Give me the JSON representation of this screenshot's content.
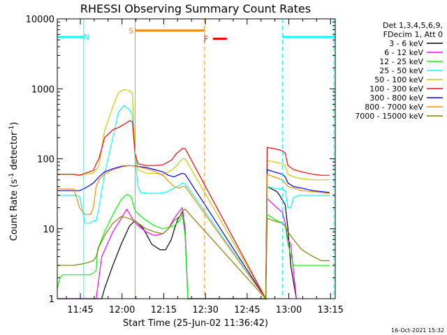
{
  "chart_data": {
    "type": "line",
    "title": "RHESSI Observing Summary Count Rates",
    "xlabel": "Start Time (25-Jun-02 11:36:42)",
    "ylabel_main": "Count Rate (s",
    "ylabel_sup1": "-1",
    "ylabel_mid": " detector",
    "ylabel_sup2": "-1",
    "ylabel_end": ")",
    "yscale": "log",
    "ylim": [
      1,
      10000
    ],
    "xlim_minutes": [
      0,
      100
    ],
    "xticks": [
      {
        "label": "11:45",
        "m": 8.3
      },
      {
        "label": "12:00",
        "m": 23.3
      },
      {
        "label": "12:15",
        "m": 38.3
      },
      {
        "label": "12:30",
        "m": 53.3
      },
      {
        "label": "12:45",
        "m": 68.3
      },
      {
        "label": "13:00",
        "m": 83.3
      },
      {
        "label": "13:15",
        "m": 98.3
      }
    ],
    "yticks": [
      {
        "label": "1",
        "v": 1
      },
      {
        "label": "10",
        "v": 10
      },
      {
        "label": "100",
        "v": 100
      },
      {
        "label": "1000",
        "v": 1000
      },
      {
        "label": "10000",
        "v": 10000
      }
    ],
    "legend_header": [
      "Det 1,3,4,5,6,9,",
      "FDecim 1, Att 0"
    ],
    "series": [
      {
        "name": "3 - 6 keV",
        "color": "#000000",
        "points": [
          [
            0,
            1
          ],
          [
            16,
            1
          ],
          [
            17,
            1.4
          ],
          [
            20,
            3
          ],
          [
            23,
            6
          ],
          [
            26,
            11
          ],
          [
            28,
            13
          ],
          [
            31,
            10
          ],
          [
            34,
            6
          ],
          [
            37,
            5
          ],
          [
            39,
            5
          ],
          [
            41,
            7
          ],
          [
            42.5,
            11
          ],
          [
            43.5,
            14
          ],
          [
            44.5,
            16
          ],
          [
            45,
            18
          ],
          [
            46,
            8
          ],
          [
            47,
            1
          ],
          [
            75,
            1
          ],
          [
            75.5,
            40
          ],
          [
            79,
            34
          ],
          [
            80,
            30
          ],
          [
            82,
            22
          ],
          [
            83,
            10
          ],
          [
            84,
            3
          ],
          [
            86,
            1
          ]
        ]
      },
      {
        "name": "6 - 12 keV",
        "color": "#ff00ff",
        "points": [
          [
            0,
            1
          ],
          [
            13,
            1
          ],
          [
            14,
            1
          ],
          [
            16,
            4
          ],
          [
            18,
            6
          ],
          [
            20,
            9
          ],
          [
            23,
            14
          ],
          [
            25,
            19
          ],
          [
            27,
            14
          ],
          [
            29,
            11
          ],
          [
            32,
            9
          ],
          [
            35,
            8
          ],
          [
            38,
            8.5
          ],
          [
            40,
            10
          ],
          [
            42,
            14
          ],
          [
            44,
            18
          ],
          [
            45,
            20
          ],
          [
            46,
            10
          ],
          [
            47,
            1
          ],
          [
            75,
            1
          ],
          [
            75.5,
            27
          ],
          [
            79,
            20
          ],
          [
            81,
            17
          ],
          [
            82,
            12
          ],
          [
            83,
            7
          ],
          [
            84,
            6
          ],
          [
            86,
            1
          ]
        ]
      },
      {
        "name": "12 - 25 keV",
        "color": "#00ff00",
        "points": [
          [
            0,
            1.4
          ],
          [
            1,
            2
          ],
          [
            2,
            2.2
          ],
          [
            6,
            2.2
          ],
          [
            10,
            2.2
          ],
          [
            12,
            2.2
          ],
          [
            14,
            2.5
          ],
          [
            14.5,
            5
          ],
          [
            17,
            9
          ],
          [
            20,
            16
          ],
          [
            23,
            26
          ],
          [
            25,
            31
          ],
          [
            26.5,
            29
          ],
          [
            28,
            18
          ],
          [
            31,
            14
          ],
          [
            35,
            11
          ],
          [
            38,
            10
          ],
          [
            40,
            10.5
          ],
          [
            42,
            11
          ],
          [
            44,
            13
          ],
          [
            45,
            16
          ],
          [
            46,
            8
          ],
          [
            47,
            1
          ],
          [
            75,
            1
          ],
          [
            75.5,
            16
          ],
          [
            79,
            13
          ],
          [
            81,
            12
          ],
          [
            82,
            11
          ],
          [
            83,
            6
          ],
          [
            85,
            3
          ],
          [
            88,
            3
          ],
          [
            90,
            3
          ],
          [
            92,
            3
          ],
          [
            95,
            3
          ],
          [
            98,
            3
          ]
        ]
      },
      {
        "name": "25 - 50 keV",
        "color": "#00ffff",
        "points": [
          [
            0,
            30
          ],
          [
            6,
            30
          ],
          [
            8,
            29
          ],
          [
            10,
            12
          ],
          [
            12,
            12
          ],
          [
            13,
            13
          ],
          [
            14,
            13
          ],
          [
            15,
            20
          ],
          [
            17,
            60
          ],
          [
            20,
            200
          ],
          [
            22,
            460
          ],
          [
            24,
            580
          ],
          [
            26,
            500
          ],
          [
            27,
            420
          ],
          [
            28,
            100
          ],
          [
            29,
            40
          ],
          [
            30,
            33
          ],
          [
            33,
            32
          ],
          [
            36,
            32
          ],
          [
            39,
            33
          ],
          [
            42,
            38
          ],
          [
            44,
            42
          ],
          [
            45,
            45
          ],
          [
            46,
            44
          ],
          [
            75,
            1
          ],
          [
            75.5,
            40
          ],
          [
            78,
            38
          ],
          [
            81,
            37
          ],
          [
            82,
            35
          ],
          [
            83,
            20
          ],
          [
            84,
            20
          ],
          [
            85,
            28
          ],
          [
            87,
            30
          ],
          [
            89,
            30
          ],
          [
            92,
            30
          ],
          [
            95,
            30
          ],
          [
            98,
            30
          ]
        ]
      },
      {
        "name": "50 - 100 keV",
        "color": "#cccc00",
        "points": [
          [
            0,
            60
          ],
          [
            6,
            60
          ],
          [
            8,
            58
          ],
          [
            10,
            60
          ],
          [
            13,
            62
          ],
          [
            14,
            70
          ],
          [
            15,
            80
          ],
          [
            17,
            250
          ],
          [
            20,
            560
          ],
          [
            22,
            880
          ],
          [
            24,
            980
          ],
          [
            26,
            930
          ],
          [
            27,
            860
          ],
          [
            28,
            120
          ],
          [
            29,
            70
          ],
          [
            32,
            62
          ],
          [
            35,
            62
          ],
          [
            38,
            60
          ],
          [
            41,
            68
          ],
          [
            43,
            80
          ],
          [
            45,
            100
          ],
          [
            46,
            100
          ],
          [
            75,
            1
          ],
          [
            75.5,
            95
          ],
          [
            78,
            90
          ],
          [
            81,
            85
          ],
          [
            82,
            80
          ],
          [
            83,
            60
          ],
          [
            85,
            55
          ],
          [
            88,
            52
          ],
          [
            92,
            50
          ],
          [
            95,
            50
          ],
          [
            98,
            50
          ]
        ]
      },
      {
        "name": "100 - 300 keV",
        "color": "#ff0000",
        "points": [
          [
            0,
            60
          ],
          [
            6,
            60
          ],
          [
            8,
            58
          ],
          [
            10,
            62
          ],
          [
            13,
            68
          ],
          [
            14,
            85
          ],
          [
            15,
            100
          ],
          [
            17,
            200
          ],
          [
            20,
            260
          ],
          [
            22,
            280
          ],
          [
            24,
            310
          ],
          [
            26,
            350
          ],
          [
            27,
            340
          ],
          [
            28,
            120
          ],
          [
            29,
            85
          ],
          [
            32,
            80
          ],
          [
            35,
            80
          ],
          [
            38,
            82
          ],
          [
            41,
            95
          ],
          [
            43,
            120
          ],
          [
            45,
            140
          ],
          [
            46,
            140
          ],
          [
            75,
            1
          ],
          [
            75.5,
            145
          ],
          [
            78,
            140
          ],
          [
            81,
            130
          ],
          [
            82,
            120
          ],
          [
            83,
            80
          ],
          [
            85,
            70
          ],
          [
            88,
            65
          ],
          [
            92,
            60
          ],
          [
            95,
            58
          ],
          [
            98,
            58
          ]
        ]
      },
      {
        "name": "300 - 800 keV",
        "color": "#0000ff",
        "points": [
          [
            0,
            35
          ],
          [
            6,
            35
          ],
          [
            8,
            35
          ],
          [
            10,
            38
          ],
          [
            13,
            45
          ],
          [
            15,
            55
          ],
          [
            17,
            65
          ],
          [
            20,
            72
          ],
          [
            23,
            78
          ],
          [
            26,
            80
          ],
          [
            29,
            78
          ],
          [
            32,
            75
          ],
          [
            35,
            70
          ],
          [
            38,
            65
          ],
          [
            40,
            58
          ],
          [
            42,
            55
          ],
          [
            44,
            60
          ],
          [
            45,
            62
          ],
          [
            46,
            60
          ],
          [
            75,
            1
          ],
          [
            75.5,
            70
          ],
          [
            78,
            65
          ],
          [
            81,
            60
          ],
          [
            82,
            55
          ],
          [
            83,
            45
          ],
          [
            85,
            40
          ],
          [
            88,
            38
          ],
          [
            92,
            35
          ],
          [
            95,
            34
          ],
          [
            98,
            33
          ]
        ]
      },
      {
        "name": "800 - 7000 keV",
        "color": "#ff8800",
        "points": [
          [
            0,
            37
          ],
          [
            6,
            37
          ],
          [
            8,
            20
          ],
          [
            10,
            16
          ],
          [
            12,
            16
          ],
          [
            13,
            20
          ],
          [
            14,
            40
          ],
          [
            15,
            50
          ],
          [
            17,
            60
          ],
          [
            20,
            70
          ],
          [
            23,
            76
          ],
          [
            26,
            80
          ],
          [
            29,
            77
          ],
          [
            32,
            72
          ],
          [
            35,
            66
          ],
          [
            38,
            58
          ],
          [
            40,
            48
          ],
          [
            42,
            40
          ],
          [
            44,
            38
          ],
          [
            45,
            40
          ],
          [
            46,
            40
          ],
          [
            75,
            1
          ],
          [
            75.5,
            60
          ],
          [
            78,
            55
          ],
          [
            81,
            50
          ],
          [
            82,
            45
          ],
          [
            83,
            40
          ],
          [
            85,
            38
          ],
          [
            88,
            35
          ],
          [
            92,
            34
          ],
          [
            95,
            33
          ],
          [
            98,
            32
          ]
        ]
      },
      {
        "name": "7000 - 15000 keV",
        "color": "#808000",
        "points": [
          [
            0,
            3
          ],
          [
            6,
            3
          ],
          [
            10,
            3.2
          ],
          [
            13,
            3.5
          ],
          [
            14,
            4
          ],
          [
            15,
            5.5
          ],
          [
            17,
            8
          ],
          [
            20,
            12
          ],
          [
            23,
            15
          ],
          [
            26,
            14
          ],
          [
            29,
            12
          ],
          [
            32,
            10
          ],
          [
            35,
            9
          ],
          [
            38,
            8.5
          ],
          [
            40,
            10
          ],
          [
            42,
            13
          ],
          [
            44,
            15
          ],
          [
            45,
            18
          ],
          [
            46,
            19
          ],
          [
            75,
            1
          ],
          [
            75.5,
            14
          ],
          [
            78,
            13
          ],
          [
            81,
            12
          ],
          [
            82,
            11
          ],
          [
            83,
            9
          ],
          [
            85,
            7
          ],
          [
            88,
            5
          ],
          [
            92,
            4
          ],
          [
            95,
            3.5
          ],
          [
            98,
            3.5
          ]
        ]
      }
    ],
    "flags": [
      {
        "label": "N",
        "color": "#00ffff",
        "y": 5500,
        "segments": [
          [
            0,
            9.5
          ],
          [
            81,
            100
          ]
        ],
        "label_m": 10.5,
        "marker_m": [
          9.5,
          81,
          99.5
        ]
      },
      {
        "label": "S",
        "color": "#ff8800",
        "y": 6800,
        "segments": [
          [
            28,
            53
          ]
        ],
        "label_m": 26.5,
        "marker_m": [
          28,
          53
        ]
      },
      {
        "label": "F",
        "color": "#ff0000",
        "y": 5200,
        "segments": [
          [
            56,
            61
          ]
        ],
        "label_m": 53.5,
        "marker_m": []
      }
    ]
  },
  "footer_timestamp": "16-Oct-2021 15:32"
}
